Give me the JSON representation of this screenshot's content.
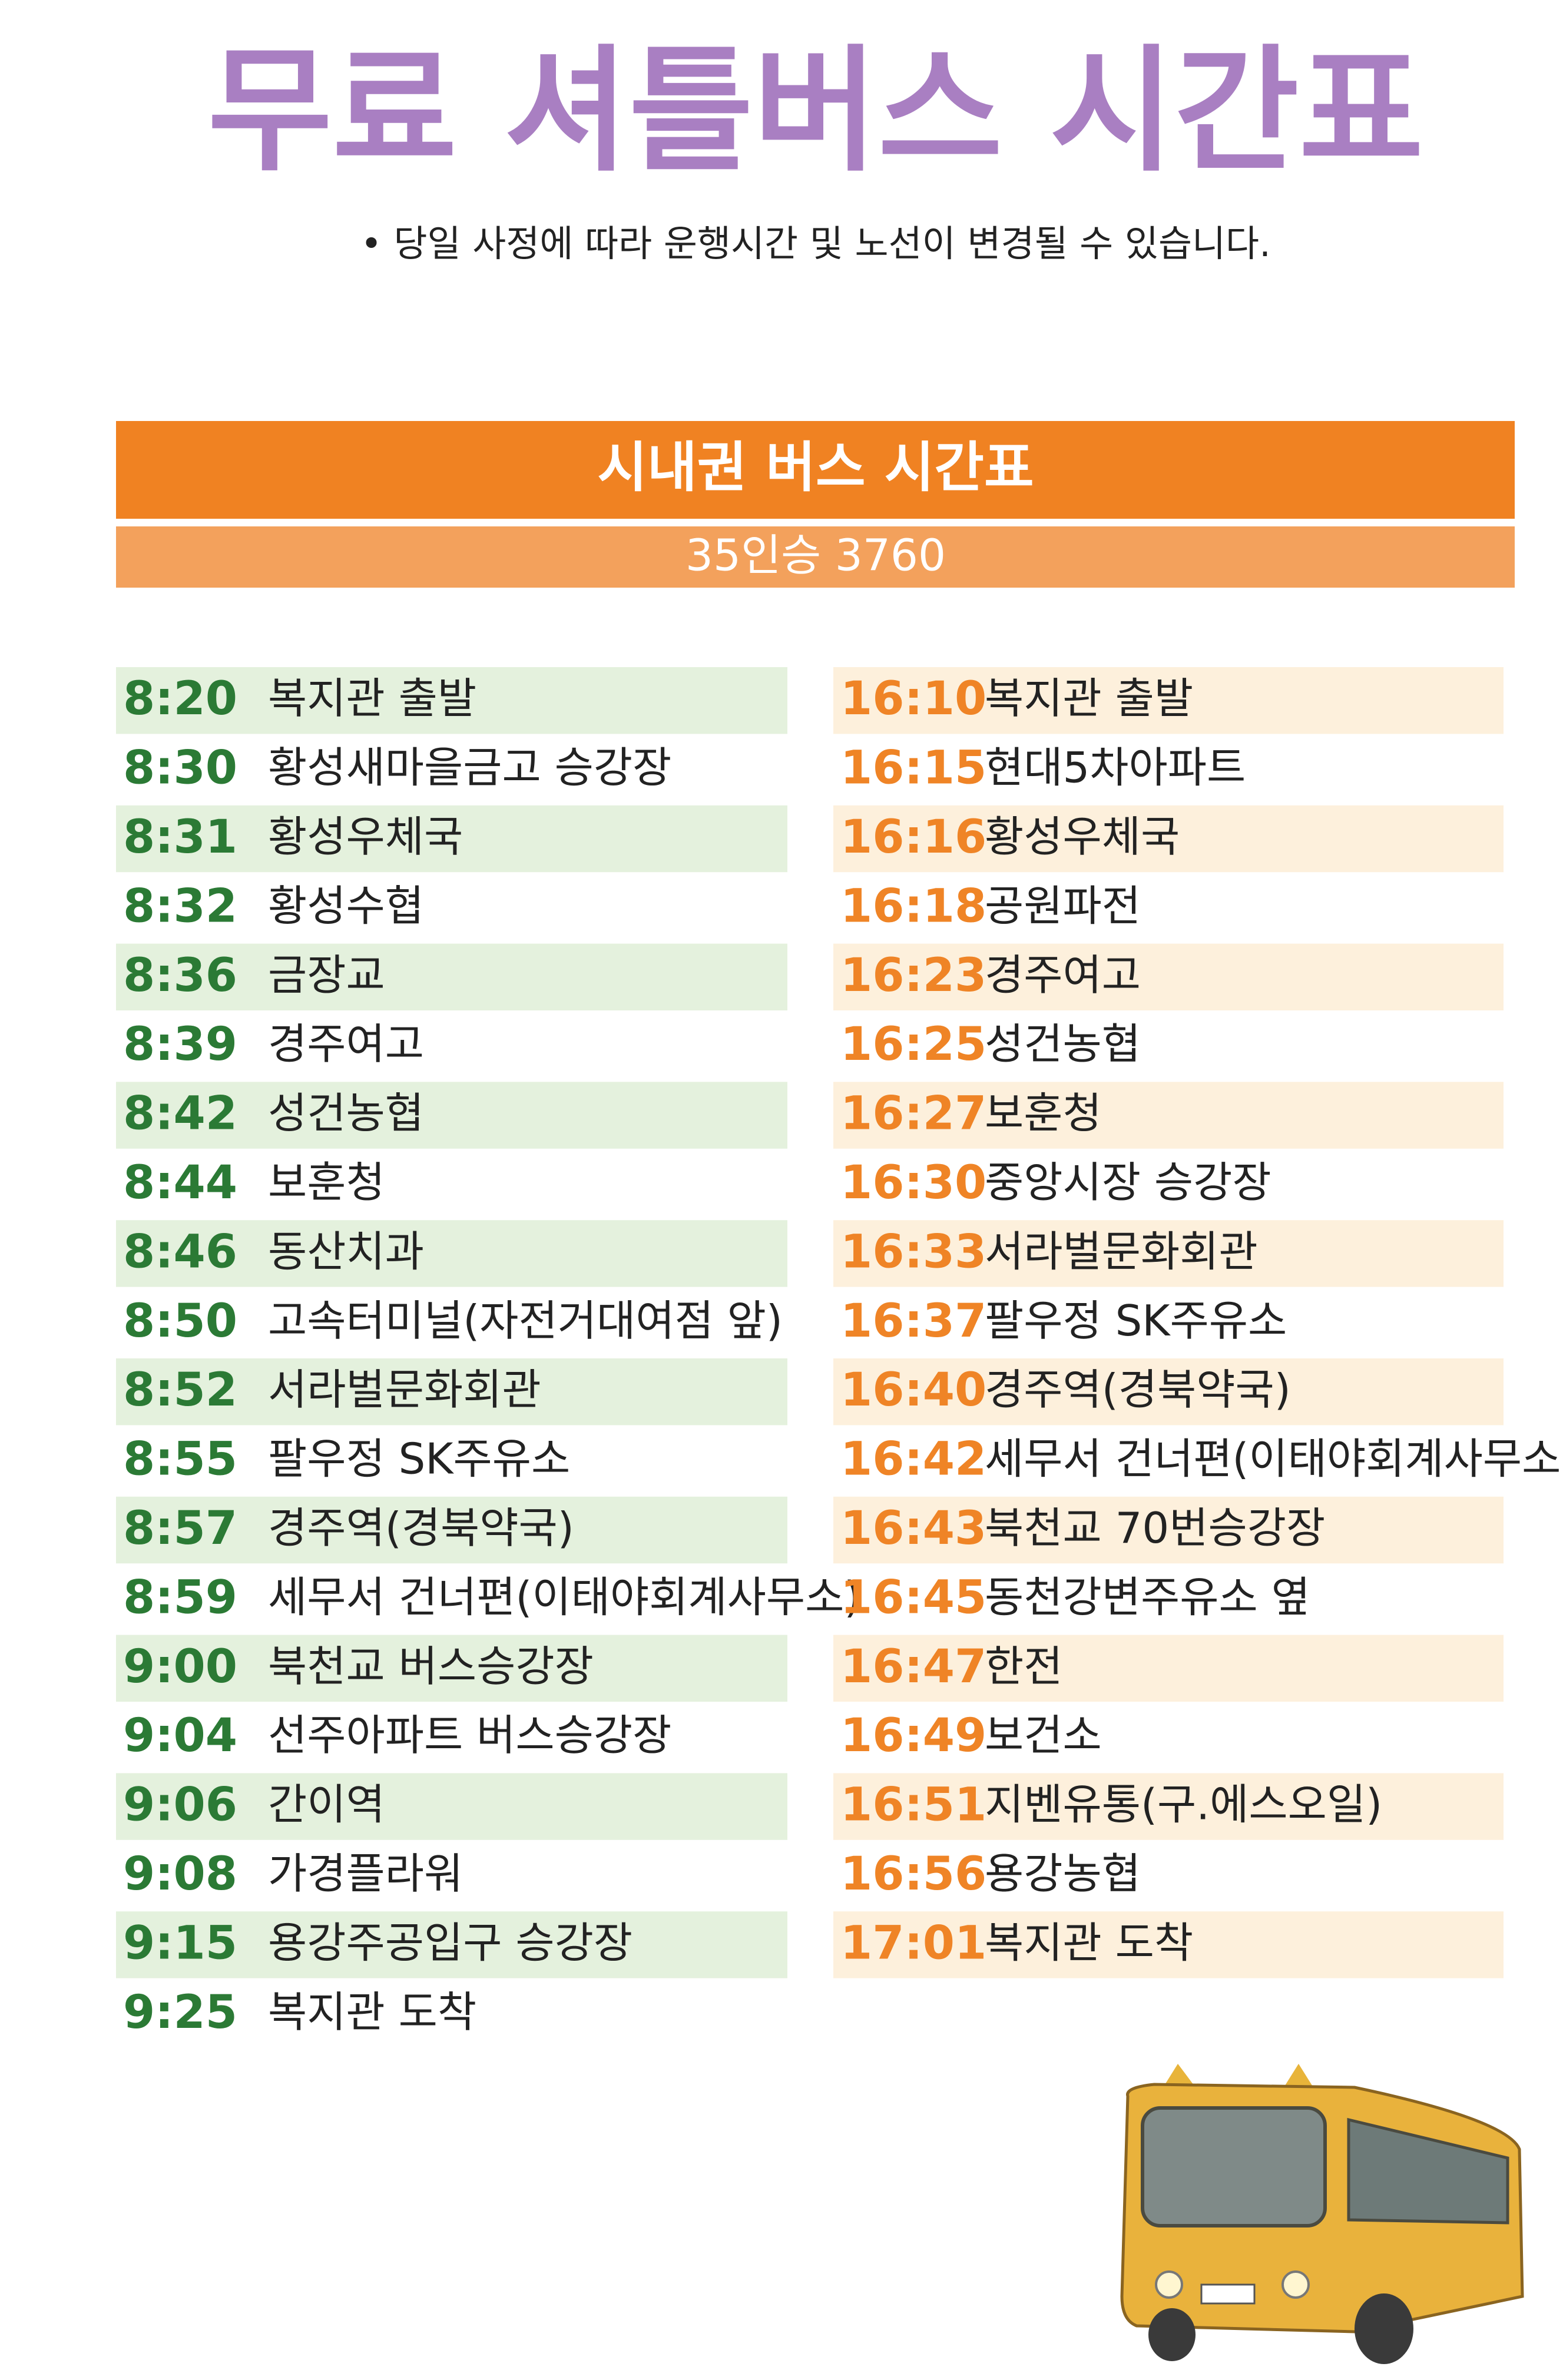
{
  "header": {
    "title": "무료 셔틀버스 시간표",
    "note": "• 당일 사정에 따라 운행시간 및 노선이 변경될 수 있습니다."
  },
  "section": {
    "title": "시내권 버스 시간표",
    "subtitle": "35인승 3760"
  },
  "left": {
    "rows": [
      {
        "time": "8:20",
        "stop": "복지관 출발"
      },
      {
        "time": "8:30",
        "stop": "황성새마을금고 승강장"
      },
      {
        "time": "8:31",
        "stop": "황성우체국"
      },
      {
        "time": "8:32",
        "stop": "황성수협"
      },
      {
        "time": "8:36",
        "stop": "금장교"
      },
      {
        "time": "8:39",
        "stop": "경주여고"
      },
      {
        "time": "8:42",
        "stop": "성건농협"
      },
      {
        "time": "8:44",
        "stop": "보훈청"
      },
      {
        "time": "8:46",
        "stop": "동산치과"
      },
      {
        "time": "8:50",
        "stop": "고속터미널(자전거대여점 앞)"
      },
      {
        "time": "8:52",
        "stop": "서라벌문화회관"
      },
      {
        "time": "8:55",
        "stop": "팔우정 SK주유소"
      },
      {
        "time": "8:57",
        "stop": "경주역(경북약국)"
      },
      {
        "time": "8:59",
        "stop": "세무서 건너편(이태야회계사무소)"
      },
      {
        "time": "9:00",
        "stop": "북천교 버스승강장"
      },
      {
        "time": "9:04",
        "stop": "선주아파트 버스승강장"
      },
      {
        "time": "9:06",
        "stop": "간이역"
      },
      {
        "time": "9:08",
        "stop": "가경플라워"
      },
      {
        "time": "9:15",
        "stop": "용강주공입구 승강장"
      },
      {
        "time": "9:25",
        "stop": "복지관 도착"
      }
    ]
  },
  "right": {
    "rows": [
      {
        "time": "16:10",
        "stop": "복지관 출발"
      },
      {
        "time": "16:15",
        "stop": "현대5차아파트"
      },
      {
        "time": "16:16",
        "stop": "황성우체국"
      },
      {
        "time": "16:18",
        "stop": "공원파전"
      },
      {
        "time": "16:23",
        "stop": "경주여고"
      },
      {
        "time": "16:25",
        "stop": "성건농협"
      },
      {
        "time": "16:27",
        "stop": "보훈청"
      },
      {
        "time": "16:30",
        "stop": "중앙시장 승강장"
      },
      {
        "time": "16:33",
        "stop": "서라벌문화회관"
      },
      {
        "time": "16:37",
        "stop": "팔우정 SK주유소"
      },
      {
        "time": "16:40",
        "stop": "경주역(경북약국)"
      },
      {
        "time": "16:42",
        "stop": "세무서 건너편(이태야회계사무소)"
      },
      {
        "time": "16:43",
        "stop": "북천교 70번승강장"
      },
      {
        "time": "16:45",
        "stop": "동천강변주유소 옆"
      },
      {
        "time": "16:47",
        "stop": "한전"
      },
      {
        "time": "16:49",
        "stop": "보건소"
      },
      {
        "time": "16:51",
        "stop": "지벤유통(구.에스오일)"
      },
      {
        "time": "16:56",
        "stop": "용강농협"
      },
      {
        "time": "17:01",
        "stop": "복지관 도착"
      }
    ]
  }
}
